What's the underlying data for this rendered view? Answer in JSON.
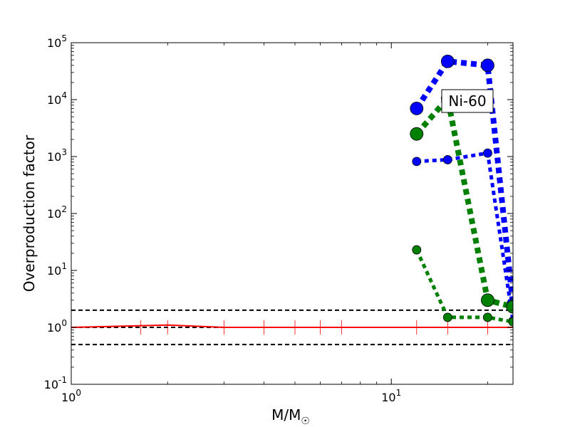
{
  "chart_data": {
    "type": "line",
    "x_scale": "log",
    "y_scale": "log",
    "xlim": [
      1,
      24
    ],
    "ylim": [
      0.1,
      100000
    ],
    "xlabel": "M/M",
    "xlabel_symbol": "☉",
    "ylabel": "Overproduction factor",
    "x_ticks": [
      {
        "value": 1,
        "base": "10",
        "exp": "0"
      },
      {
        "value": 10,
        "base": "10",
        "exp": "1"
      }
    ],
    "y_ticks": [
      {
        "value": 0.1,
        "base": "10",
        "exp": "-1"
      },
      {
        "value": 1,
        "base": "10",
        "exp": "0"
      },
      {
        "value": 10,
        "base": "10",
        "exp": "1"
      },
      {
        "value": 100,
        "base": "10",
        "exp": "2"
      },
      {
        "value": 1000,
        "base": "10",
        "exp": "3"
      },
      {
        "value": 10000,
        "base": "10",
        "exp": "4"
      },
      {
        "value": 100000,
        "base": "10",
        "exp": "5"
      }
    ],
    "annotation": "Ni-60",
    "reference_lines": [
      {
        "y": 2,
        "color": "#000000",
        "style": "dashed"
      },
      {
        "y": 1,
        "color": "#000000",
        "style": "dashed"
      },
      {
        "y": 0.5,
        "color": "#000000",
        "style": "dashed"
      }
    ],
    "series": [
      {
        "color": "#ff0000",
        "style": "solid",
        "marker": "none",
        "x": [
          1,
          2,
          3,
          4,
          5,
          6,
          7,
          12,
          15,
          20,
          24
        ],
        "y": [
          1.0,
          1.1,
          1.0,
          1.0,
          1.0,
          1.0,
          1.0,
          1.0,
          1.0,
          1.0,
          1.0
        ]
      },
      {
        "color": "#ff0000",
        "style": "ticks",
        "marker": "vline",
        "x": [
          1.65,
          2,
          3,
          4,
          5,
          6,
          7,
          12,
          15,
          20,
          24
        ],
        "y": [
          1.0,
          1.0,
          1.0,
          1.0,
          1.0,
          1.0,
          1.0,
          1.0,
          1.0,
          1.0,
          1.0
        ]
      },
      {
        "color": "#0000ff",
        "style": "dotted",
        "marker": "circle",
        "x": [
          12,
          15,
          20,
          24
        ],
        "y": [
          7000,
          47000,
          40000,
          2.5
        ]
      },
      {
        "color": "#0000ff",
        "style": "dotted",
        "marker": "circle",
        "x": [
          12,
          15,
          20,
          24
        ],
        "y": [
          820,
          880,
          1150,
          1.3
        ]
      },
      {
        "color": "#008000",
        "style": "dotted",
        "marker": "circle",
        "x": [
          12,
          15,
          20,
          24
        ],
        "y": [
          2500,
          10500,
          3.0,
          2.3
        ]
      },
      {
        "color": "#008000",
        "style": "dotted",
        "marker": "circle",
        "x": [
          12,
          15,
          20,
          24
        ],
        "y": [
          23,
          1.5,
          1.5,
          1.25
        ]
      }
    ]
  }
}
